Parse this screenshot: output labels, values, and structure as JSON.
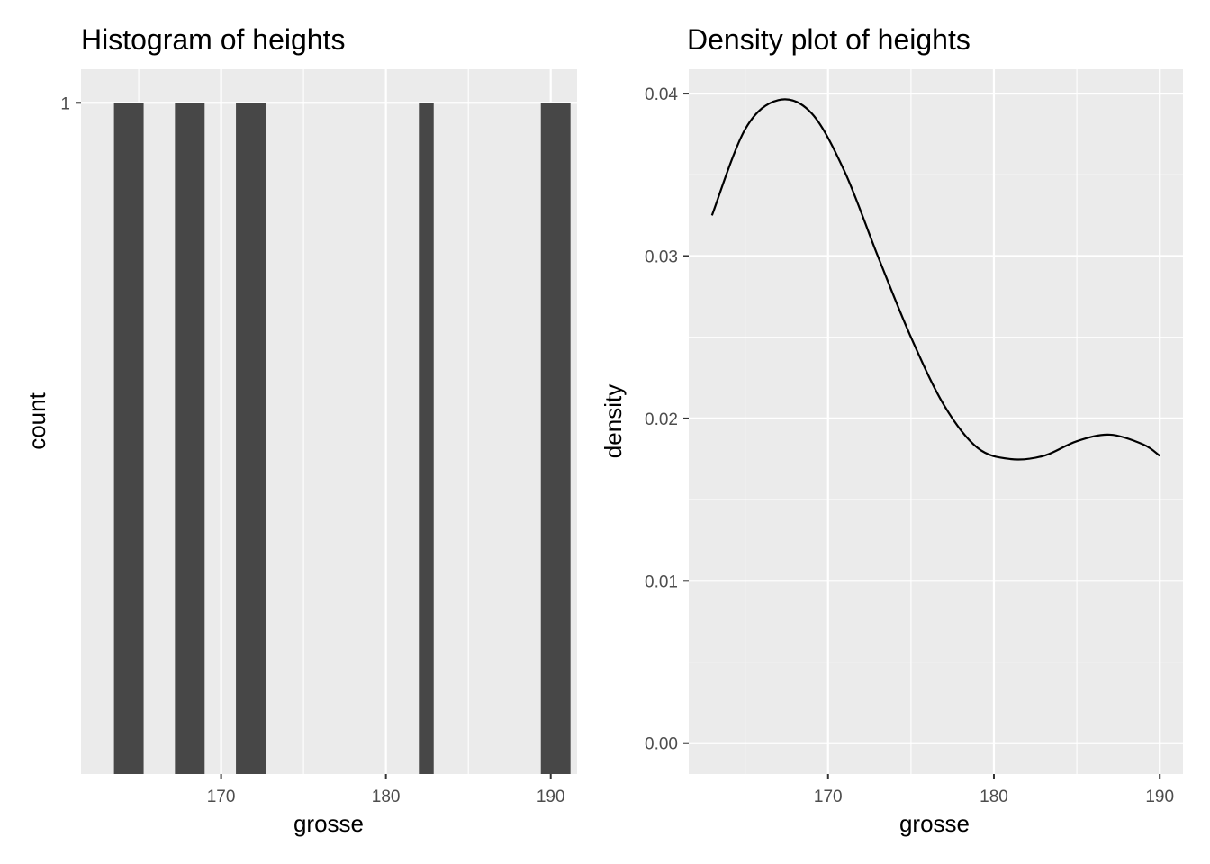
{
  "chart_data": [
    {
      "type": "bar",
      "title": "Histogram of heights",
      "xlabel": "grosse",
      "ylabel": "count",
      "xlim": [
        161.5,
        191.6
      ],
      "ylim": [
        0,
        1.05
      ],
      "x_ticks": [
        170,
        180,
        190
      ],
      "y_ticks": [
        1
      ],
      "grid": true,
      "bars": [
        {
          "x": 163.5,
          "x_end": 165.3,
          "count": 1
        },
        {
          "x": 167.2,
          "x_end": 169.0,
          "count": 1
        },
        {
          "x": 170.9,
          "x_end": 172.7,
          "count": 1
        },
        {
          "x": 182.0,
          "x_end": 182.9,
          "count": 1
        },
        {
          "x": 189.4,
          "x_end": 191.2,
          "count": 1
        }
      ],
      "colors": {
        "bar": "#474747",
        "panel": "#ebebeb"
      }
    },
    {
      "type": "line",
      "title": "Density plot of heights",
      "xlabel": "grosse",
      "ylabel": "density",
      "xlim": [
        161.6,
        191.4
      ],
      "ylim": [
        -0.0019,
        0.0415
      ],
      "x_ticks": [
        170,
        180,
        190
      ],
      "y_ticks": [
        0.0,
        0.01,
        0.02,
        0.03,
        0.04
      ],
      "y_tick_labels": [
        "0.00",
        "0.01",
        "0.02",
        "0.03",
        "0.04"
      ],
      "grid": true,
      "x": [
        163,
        165,
        167,
        169,
        171,
        173,
        175,
        177,
        179,
        181,
        183,
        185,
        187,
        189,
        190
      ],
      "y": [
        0.0325,
        0.0378,
        0.0396,
        0.0388,
        0.0352,
        0.03,
        0.025,
        0.0208,
        0.0182,
        0.0175,
        0.0177,
        0.0186,
        0.019,
        0.0184,
        0.0177
      ],
      "colors": {
        "line": "#000000",
        "panel": "#ebebeb"
      }
    }
  ]
}
